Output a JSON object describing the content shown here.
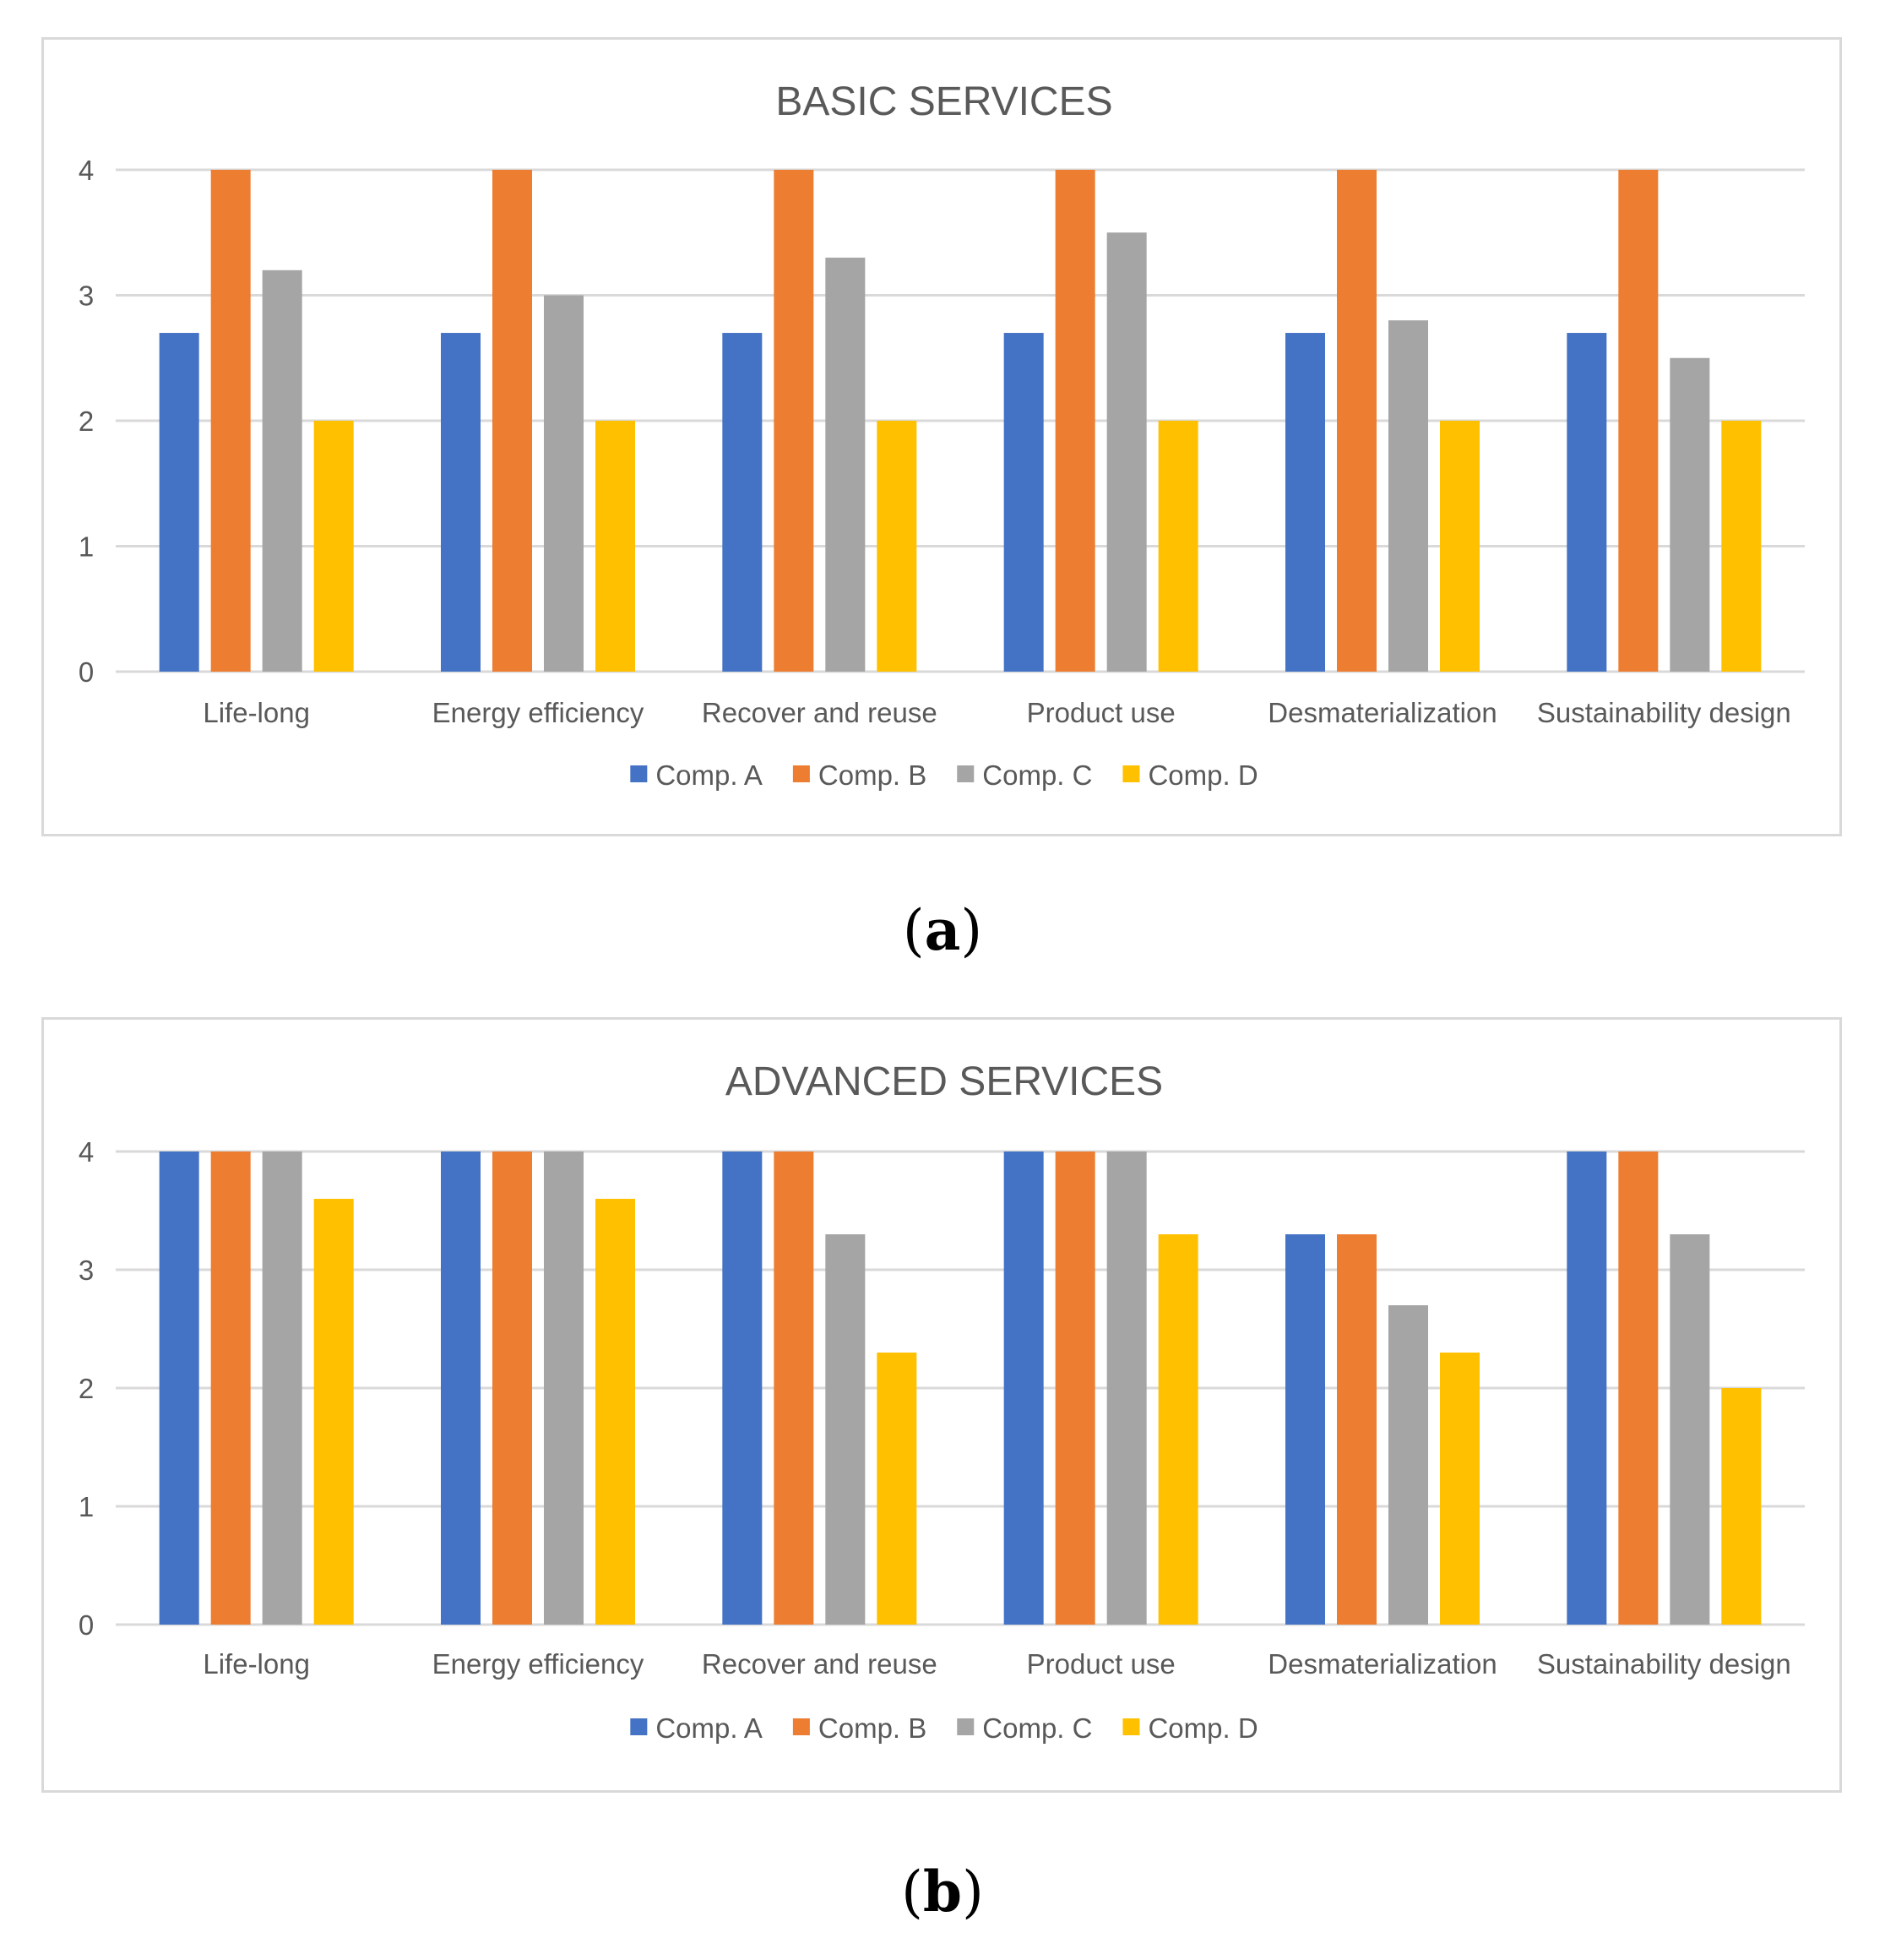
{
  "chart_data": [
    {
      "type": "bar",
      "panel_label": "a",
      "title": "BASIC SERVICES",
      "categories": [
        "Life-long",
        "Energy efficiency",
        "Recover and reuse",
        "Product use",
        "Desmaterialization",
        "Sustainability design"
      ],
      "series": [
        {
          "name": "Comp. A",
          "color": "#4472c4",
          "values": [
            2.7,
            2.7,
            2.7,
            2.7,
            2.7,
            2.7
          ]
        },
        {
          "name": "Comp. B",
          "color": "#ed7d31",
          "values": [
            4,
            4,
            4,
            4,
            4,
            4
          ]
        },
        {
          "name": "Comp. C",
          "color": "#a5a5a5",
          "values": [
            3.2,
            3.0,
            3.3,
            3.5,
            2.8,
            2.5
          ]
        },
        {
          "name": "Comp. D",
          "color": "#ffc000",
          "values": [
            2,
            2,
            2,
            2,
            2,
            2
          ]
        }
      ],
      "yticks": [
        "0",
        "1",
        "2",
        "3",
        "4"
      ],
      "ylim": [
        0,
        4
      ],
      "grid": true,
      "legend": "bottom",
      "xlabel": "",
      "ylabel": ""
    },
    {
      "type": "bar",
      "panel_label": "b",
      "title": "ADVANCED SERVICES",
      "categories": [
        "Life-long",
        "Energy efficiency",
        "Recover and reuse",
        "Product use",
        "Desmaterialization",
        "Sustainability design"
      ],
      "series": [
        {
          "name": "Comp. A",
          "color": "#4472c4",
          "values": [
            4,
            4,
            4,
            4,
            3.3,
            4
          ]
        },
        {
          "name": "Comp. B",
          "color": "#ed7d31",
          "values": [
            4,
            4,
            4,
            4,
            3.3,
            4
          ]
        },
        {
          "name": "Comp. C",
          "color": "#a5a5a5",
          "values": [
            4,
            4,
            3.3,
            4,
            2.7,
            3.3
          ]
        },
        {
          "name": "Comp. D",
          "color": "#ffc000",
          "values": [
            3.6,
            3.6,
            2.3,
            3.3,
            2.3,
            2.0
          ]
        }
      ],
      "yticks": [
        "0",
        "1",
        "2",
        "3",
        "4"
      ],
      "ylim": [
        0,
        4
      ],
      "grid": true,
      "legend": "bottom",
      "xlabel": "",
      "ylabel": ""
    }
  ]
}
